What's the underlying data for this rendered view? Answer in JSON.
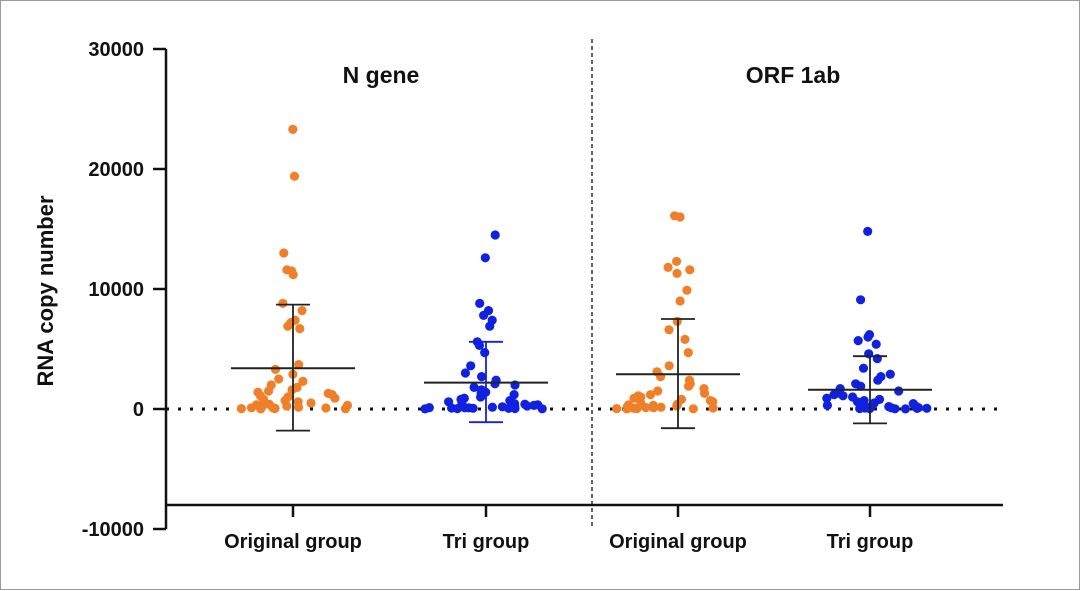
{
  "chart_data": {
    "type": "scatter",
    "ylabel": "RNA copy number",
    "ylim": [
      -10000,
      30000
    ],
    "yticks": [
      -10000,
      0,
      10000,
      20000,
      30000
    ],
    "ytick_labels": [
      "-10000",
      "0",
      "10000",
      "20000",
      "30000"
    ],
    "reference_line": 0,
    "panels": [
      {
        "title": "N gene",
        "groups": [
          {
            "label": "Original group",
            "color": "#F07F2A",
            "mean": 3400,
            "sd_low": -1800,
            "sd_high": 8700,
            "values": [
              23300,
              19400,
              13000,
              11600,
              11500,
              11200,
              8800,
              8200,
              7400,
              7200,
              6900,
              6700,
              3700,
              3300,
              2900,
              2500,
              2300,
              2000,
              1800,
              1600,
              1500,
              1400,
              1300,
              1200,
              1100,
              1000,
              900,
              800,
              700,
              600,
              500,
              400,
              350,
              300,
              250,
              200,
              150,
              120,
              100,
              80,
              60,
              40,
              30,
              20,
              10
            ]
          },
          {
            "label": "Tri group",
            "color": "#1021E0",
            "mean": 2200,
            "sd_low": -1100,
            "sd_high": 5600,
            "values": [
              14500,
              12600,
              8800,
              8200,
              7800,
              7400,
              6900,
              5600,
              5300,
              4700,
              3600,
              3000,
              2700,
              2400,
              2100,
              2000,
              1800,
              1600,
              1400,
              1300,
              1200,
              1100,
              1000,
              900,
              800,
              700,
              600,
              500,
              450,
              400,
              350,
              300,
              250,
              200,
              180,
              150,
              120,
              100,
              90,
              80,
              60,
              50,
              40,
              30,
              20,
              10
            ]
          }
        ]
      },
      {
        "title": "ORF 1ab",
        "groups": [
          {
            "label": "Original group",
            "color": "#F07F2A",
            "mean": 2900,
            "sd_low": -1600,
            "sd_high": 7500,
            "values": [
              16100,
              16000,
              12300,
              11800,
              11600,
              11300,
              9900,
              9000,
              7300,
              6600,
              5800,
              4700,
              3600,
              3100,
              2700,
              2400,
              2100,
              1900,
              1700,
              1500,
              1300,
              1200,
              1100,
              1000,
              900,
              800,
              700,
              600,
              500,
              400,
              350,
              300,
              250,
              200,
              150,
              120,
              100,
              80,
              60,
              40,
              30,
              20,
              10
            ]
          },
          {
            "label": "Tri group",
            "color": "#1021E0",
            "mean": 1600,
            "sd_low": -1200,
            "sd_high": 4400,
            "values": [
              14800,
              9100,
              6200,
              6000,
              5700,
              5400,
              4600,
              4200,
              3400,
              2900,
              2700,
              2400,
              2100,
              1900,
              1700,
              1500,
              1300,
              1200,
              1100,
              1000,
              900,
              800,
              700,
              600,
              500,
              450,
              400,
              350,
              300,
              250,
              200,
              150,
              120,
              100,
              80,
              60,
              50,
              40,
              30,
              20,
              10
            ]
          }
        ]
      }
    ]
  }
}
